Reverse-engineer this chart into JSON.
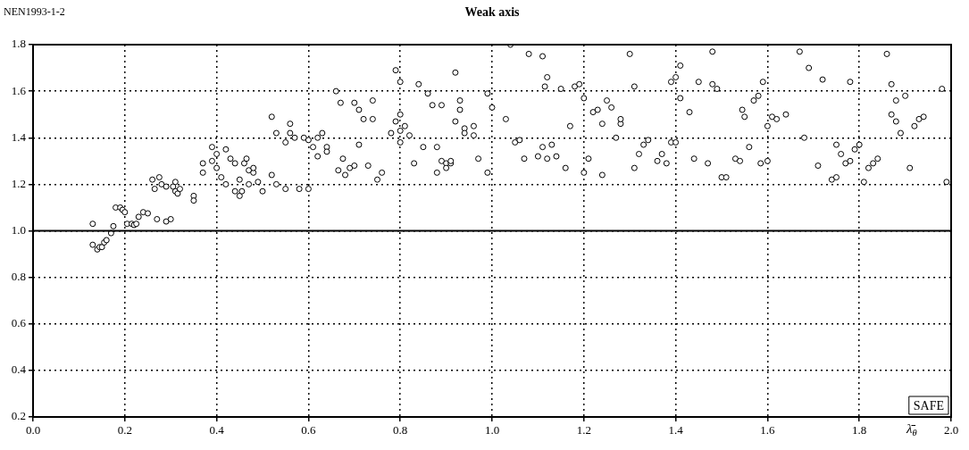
{
  "chart_data": {
    "type": "scatter",
    "title": "Weak axis",
    "ylabel": "NEN1993-1-2",
    "xlabel": "λ̄$_{θ}$",
    "annotations": [
      "SAFE"
    ],
    "marker": "circle",
    "grid": true,
    "legend": false,
    "xlim": [
      0,
      2
    ],
    "ylim": [
      0.2,
      1.8
    ],
    "xticks": [
      {
        "value": 0,
        "label": "0.0"
      },
      {
        "value": 0.2,
        "label": "0.2"
      },
      {
        "value": 0.4,
        "label": "0.4"
      },
      {
        "value": 0.6,
        "label": "0.6"
      },
      {
        "value": 0.8,
        "label": "0.8"
      },
      {
        "value": 1,
        "label": "1.0"
      },
      {
        "value": 1.2,
        "label": "1.2"
      },
      {
        "value": 1.4,
        "label": "1.4"
      },
      {
        "value": 1.6,
        "label": "1.6"
      },
      {
        "value": 1.8,
        "label": "1.8"
      },
      {
        "value": 2,
        "label": "2.0"
      }
    ],
    "yticks": [
      {
        "value": 0.2,
        "label": "0.2"
      },
      {
        "value": 0.4,
        "label": "0.4"
      },
      {
        "value": 0.6,
        "label": "0.6"
      },
      {
        "value": 0.8,
        "label": "0.8"
      },
      {
        "value": 1,
        "label": "1.0"
      },
      {
        "value": 1.2,
        "label": "1.2"
      },
      {
        "value": 1.4,
        "label": "1.4"
      },
      {
        "value": 1.6,
        "label": "1.6"
      },
      {
        "value": 1.8,
        "label": "1.8"
      }
    ],
    "ref_lines": [
      {
        "axis": "y",
        "value": 1.0,
        "color": "#000000"
      }
    ],
    "series": [
      {
        "color": "#000000",
        "x": [
          0.13,
          0.13,
          0.14,
          0.145,
          0.15,
          0.155,
          0.16,
          0.17,
          0.175,
          0.18,
          0.19,
          0.195,
          0.2,
          0.205,
          0.215,
          0.22,
          0.225,
          0.23,
          0.24,
          0.25,
          0.26,
          0.265,
          0.27,
          0.275,
          0.28,
          0.29,
          0.29,
          0.3,
          0.305,
          0.31,
          0.31,
          0.315,
          0.32,
          0.35,
          0.35,
          0.37,
          0.37,
          0.39,
          0.39,
          0.4,
          0.4,
          0.41,
          0.42,
          0.42,
          0.43,
          0.44,
          0.44,
          0.45,
          0.45,
          0.455,
          0.46,
          0.465,
          0.47,
          0.47,
          0.48,
          0.48,
          0.49,
          0.5,
          0.52,
          0.52,
          0.53,
          0.53,
          0.55,
          0.55,
          0.56,
          0.56,
          0.57,
          0.58,
          0.59,
          0.6,
          0.6,
          0.61,
          0.62,
          0.62,
          0.63,
          0.64,
          0.64,
          0.66,
          0.665,
          0.67,
          0.675,
          0.68,
          0.69,
          0.7,
          0.7,
          0.71,
          0.71,
          0.72,
          0.73,
          0.74,
          0.74,
          0.75,
          0.76,
          0.78,
          0.79,
          0.79,
          0.8,
          0.8,
          0.8,
          0.8,
          0.81,
          0.82,
          0.83,
          0.84,
          0.85,
          0.86,
          0.87,
          0.88,
          0.88,
          0.89,
          0.89,
          0.9,
          0.9,
          0.91,
          0.91,
          0.92,
          0.92,
          0.93,
          0.93,
          0.94,
          0.94,
          0.96,
          0.96,
          0.97,
          0.99,
          0.99,
          1.0,
          1.03,
          1.04,
          1.05,
          1.06,
          1.07,
          1.08,
          1.1,
          1.11,
          1.11,
          1.115,
          1.12,
          1.12,
          1.13,
          1.14,
          1.15,
          1.16,
          1.17,
          1.18,
          1.19,
          1.2,
          1.2,
          1.21,
          1.22,
          1.23,
          1.24,
          1.24,
          1.25,
          1.26,
          1.27,
          1.28,
          1.28,
          1.3,
          1.31,
          1.31,
          1.32,
          1.33,
          1.34,
          1.36,
          1.37,
          1.38,
          1.39,
          1.39,
          1.4,
          1.41,
          1.41,
          1.4,
          1.43,
          1.44,
          1.45,
          1.47,
          1.48,
          1.48,
          1.49,
          1.5,
          1.51,
          1.53,
          1.54,
          1.545,
          1.55,
          1.56,
          1.57,
          1.58,
          1.585,
          1.59,
          1.6,
          1.6,
          1.61,
          1.62,
          1.64,
          1.67,
          1.68,
          1.69,
          1.71,
          1.72,
          1.74,
          1.75,
          1.75,
          1.76,
          1.77,
          1.78,
          1.78,
          1.79,
          1.8,
          1.81,
          1.82,
          1.83,
          1.84,
          1.86,
          1.87,
          1.87,
          1.88,
          1.88,
          1.89,
          1.9,
          1.91,
          1.92,
          1.93,
          1.94,
          1.98,
          1.99
        ],
        "values": [
          1.03,
          0.94,
          0.92,
          0.93,
          0.93,
          0.95,
          0.96,
          0.99,
          1.02,
          1.1,
          1.1,
          1.09,
          1.08,
          1.03,
          1.03,
          1.025,
          1.03,
          1.06,
          1.08,
          1.075,
          1.22,
          1.18,
          1.05,
          1.23,
          1.2,
          1.19,
          1.04,
          1.05,
          1.19,
          1.21,
          1.17,
          1.16,
          1.18,
          1.15,
          1.13,
          1.29,
          1.25,
          1.36,
          1.3,
          1.27,
          1.33,
          1.23,
          1.35,
          1.2,
          1.31,
          1.29,
          1.17,
          1.15,
          1.22,
          1.17,
          1.29,
          1.31,
          1.26,
          1.2,
          1.25,
          1.27,
          1.21,
          1.17,
          1.49,
          1.24,
          1.42,
          1.2,
          1.38,
          1.18,
          1.46,
          1.42,
          1.4,
          1.18,
          1.4,
          1.39,
          1.18,
          1.36,
          1.32,
          1.4,
          1.42,
          1.36,
          1.34,
          1.6,
          1.26,
          1.55,
          1.31,
          1.24,
          1.27,
          1.28,
          1.55,
          1.52,
          1.37,
          1.48,
          1.28,
          1.48,
          1.56,
          1.22,
          1.25,
          1.42,
          1.69,
          1.47,
          1.5,
          1.64,
          1.38,
          1.43,
          1.45,
          1.41,
          1.29,
          1.63,
          1.36,
          1.59,
          1.54,
          1.25,
          1.36,
          1.3,
          1.54,
          1.29,
          1.27,
          1.29,
          1.3,
          1.68,
          1.47,
          1.52,
          1.56,
          1.44,
          1.42,
          1.41,
          1.45,
          1.31,
          1.59,
          1.25,
          1.53,
          1.48,
          1.8,
          1.38,
          1.39,
          1.31,
          1.76,
          1.32,
          1.75,
          1.36,
          1.62,
          1.66,
          1.31,
          1.37,
          1.32,
          1.61,
          1.27,
          1.45,
          1.62,
          1.63,
          1.25,
          1.57,
          1.31,
          1.51,
          1.52,
          1.46,
          1.24,
          1.56,
          1.53,
          1.4,
          1.46,
          1.48,
          1.76,
          1.62,
          1.27,
          1.33,
          1.37,
          1.39,
          1.3,
          1.33,
          1.29,
          1.64,
          1.38,
          1.66,
          1.71,
          1.57,
          1.38,
          1.51,
          1.31,
          1.64,
          1.29,
          1.63,
          1.77,
          1.61,
          1.23,
          1.23,
          1.31,
          1.3,
          1.52,
          1.49,
          1.36,
          1.56,
          1.58,
          1.29,
          1.64,
          1.45,
          1.3,
          1.49,
          1.48,
          1.5,
          1.77,
          1.4,
          1.7,
          1.28,
          1.65,
          1.22,
          1.23,
          1.37,
          1.33,
          1.29,
          1.64,
          1.3,
          1.35,
          1.37,
          1.21,
          1.27,
          1.29,
          1.31,
          1.76,
          1.5,
          1.63,
          1.47,
          1.56,
          1.42,
          1.58,
          1.27,
          1.45,
          1.48,
          1.49,
          1.61,
          1.21
        ]
      }
    ]
  }
}
